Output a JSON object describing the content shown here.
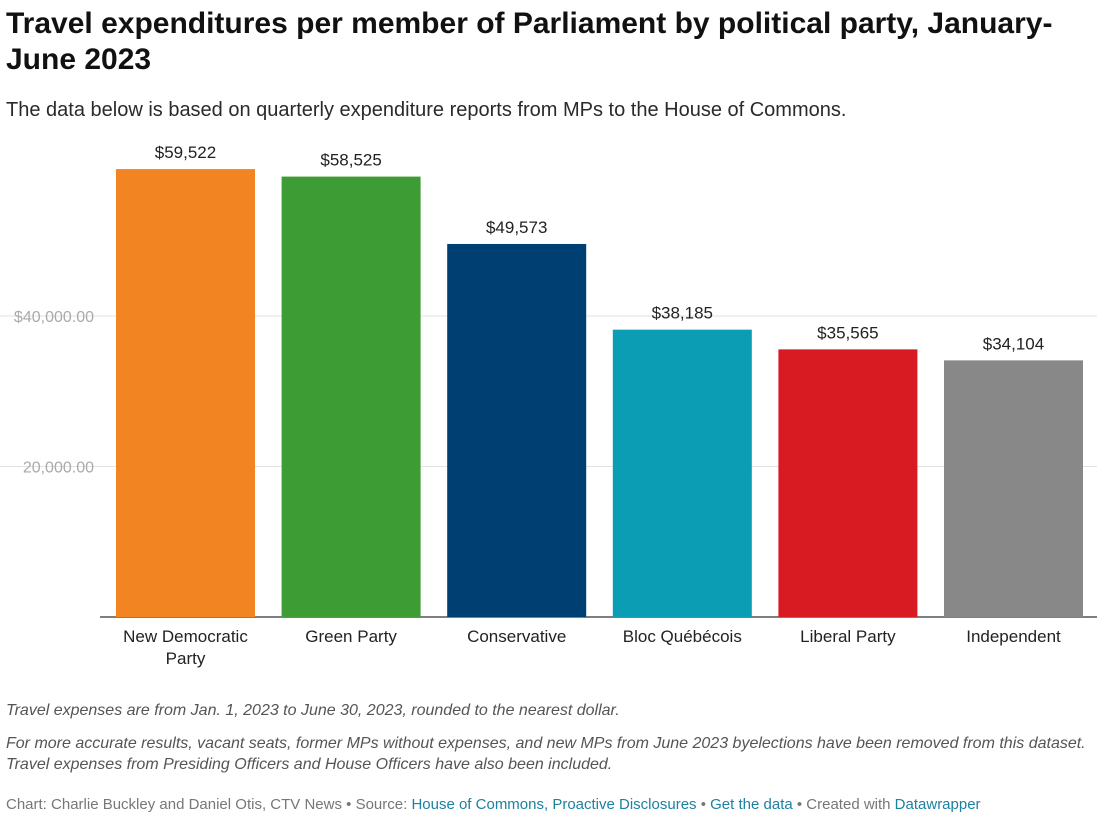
{
  "title": "Travel expenditures per member of Parliament by political party, January-June 2023",
  "subtitle": "The data below is based on quarterly expenditure reports from MPs to the House of Commons.",
  "chart_data": {
    "type": "bar",
    "title": "Travel expenditures per member of Parliament by political party, January-June 2023",
    "xlabel": "",
    "ylabel": "",
    "ylim": [
      0,
      62000
    ],
    "grid": true,
    "legend": "none",
    "yticks": [
      {
        "value": 20000,
        "label": "20,000.00"
      },
      {
        "value": 40000,
        "label": "$40,000.00"
      }
    ],
    "categories": [
      "New Democratic Party",
      "Green Party",
      "Conservative",
      "Bloc Québécois",
      "Liberal Party",
      "Independent"
    ],
    "category_label_lines": [
      [
        "New Democratic",
        "Party"
      ],
      [
        "Green Party"
      ],
      [
        "Conservative"
      ],
      [
        "Bloc Québécois"
      ],
      [
        "Liberal Party"
      ],
      [
        "Independent"
      ]
    ],
    "values": [
      59522,
      58525,
      49573,
      38185,
      35565,
      34104
    ],
    "value_labels": [
      "$59,522",
      "$58,525",
      "$49,573",
      "$38,185",
      "$35,565",
      "$34,104"
    ],
    "colors": [
      "#f28522",
      "#3e9c35",
      "#003f72",
      "#0a9db3",
      "#d81b23",
      "#888888"
    ]
  },
  "notes": [
    "Travel expenses are from Jan. 1, 2023 to June 30, 2023, rounded to the nearest dollar.",
    "For more accurate results, vacant seats, former MPs without expenses, and new MPs from June 2023 byelections have been removed from this dataset. Travel expenses from Presiding Officers and House Officers have also been included."
  ],
  "footer": {
    "chart_prefix": "Chart: ",
    "authors": "Charlie Buckley and Daniel Otis, CTV News",
    "sep1": " • ",
    "source_prefix": "Source: ",
    "source_link": "House of Commons, Proactive Disclosures",
    "sep2": " • ",
    "data_link": "Get the data",
    "sep3": " • ",
    "created_prefix": "Created with ",
    "tool_link": "Datawrapper"
  }
}
